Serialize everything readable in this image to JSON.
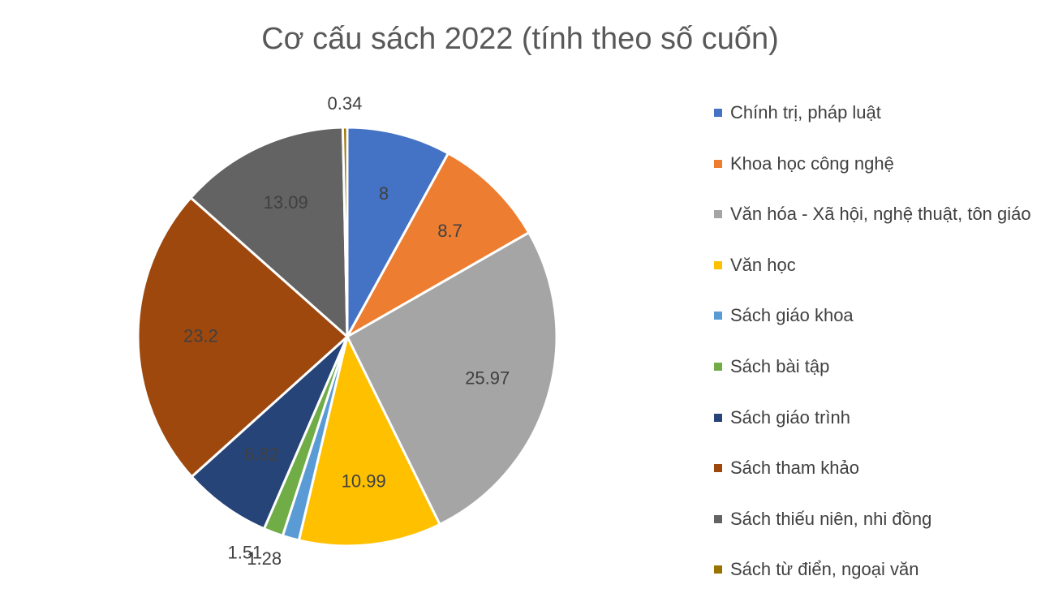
{
  "chart_data": {
    "type": "pie",
    "title": "Cơ cấu sách 2022 (tính theo số cuốn)",
    "categories": [
      "Chính trị, pháp luật",
      "Khoa học công nghệ",
      "Văn hóa - Xã hội, nghệ thuật, tôn giáo",
      "Văn học",
      "Sách giáo khoa",
      "Sách bài tập",
      "Sách giáo trình",
      "Sách tham khảo",
      "Sách thiếu niên, nhi đồng",
      "Sách từ điển, ngoại văn"
    ],
    "values": [
      8,
      8.7,
      25.97,
      10.99,
      1.28,
      1.51,
      6.82,
      23.2,
      13.09,
      0.34
    ],
    "colors": [
      "#4472c4",
      "#ed7d31",
      "#a5a5a5",
      "#ffc000",
      "#5b9bd5",
      "#70ad47",
      "#264478",
      "#9e480e",
      "#636363",
      "#997300"
    ],
    "legend": "right"
  }
}
